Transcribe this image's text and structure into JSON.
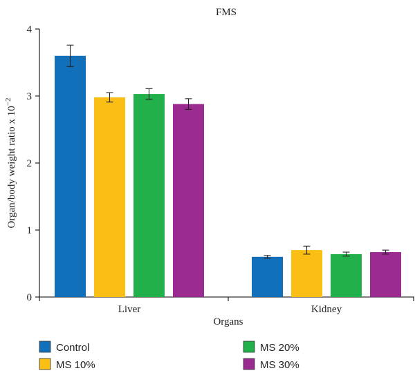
{
  "chart_data": {
    "type": "bar",
    "title": "FMS",
    "xlabel": "Organs",
    "ylabel": "Organ/body weight ratio x 10",
    "ylabel_exponent": "−2",
    "categories": [
      "Liver",
      "Kidney"
    ],
    "ylim": [
      0,
      4
    ],
    "yticks": [
      "0",
      "1",
      "2",
      "3",
      "4"
    ],
    "grid": false,
    "legend_position": "bottom",
    "series": [
      {
        "name": "Control",
        "color": "#1270ba",
        "values": [
          3.6,
          0.6
        ],
        "errors": [
          0.16,
          0.02
        ]
      },
      {
        "name": "MS 10%",
        "color": "#fbbe15",
        "values": [
          2.98,
          0.7
        ],
        "errors": [
          0.07,
          0.06
        ]
      },
      {
        "name": "MS 20%",
        "color": "#22b04b",
        "values": [
          3.03,
          0.64
        ],
        "errors": [
          0.08,
          0.03
        ]
      },
      {
        "name": "MS 30%",
        "color": "#9b2b90",
        "values": [
          2.88,
          0.67
        ],
        "errors": [
          0.08,
          0.03
        ]
      }
    ]
  }
}
